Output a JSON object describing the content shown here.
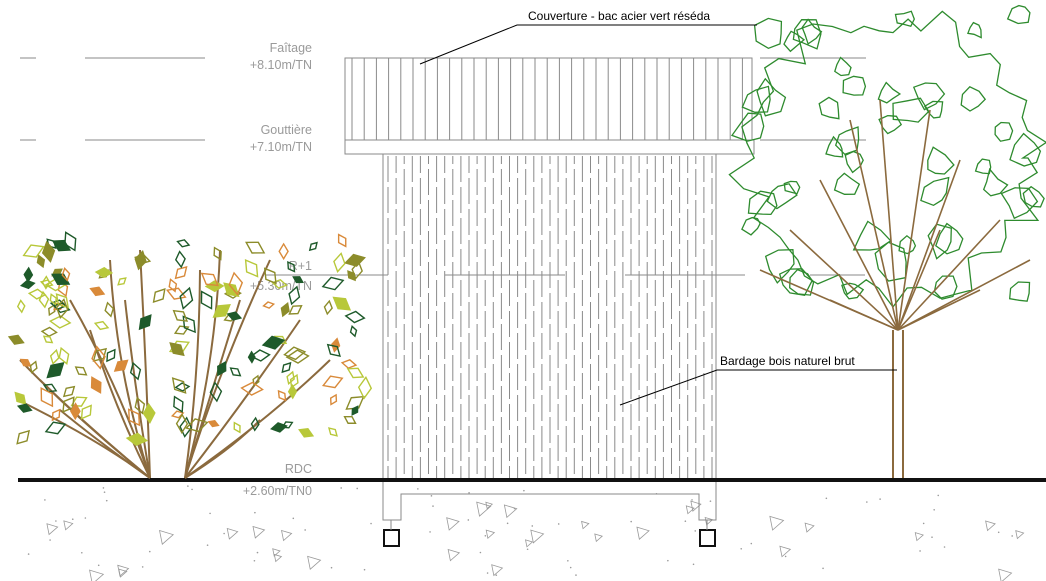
{
  "levels": {
    "faitage": {
      "name": "Faîtage",
      "value": "+8.10m/TN"
    },
    "gouttiere": {
      "name": "Gouttière",
      "value": "+7.10m/TN"
    },
    "r1": {
      "name": "R+1",
      "value": "+5.30m/TN"
    },
    "rdc": {
      "name": "RDC",
      "value": "+2.60m/TN0"
    }
  },
  "annotations": {
    "roof": "Couverture - bac acier vert réséda",
    "cladding": "Bardage bois naturel brut"
  },
  "colors": {
    "line": "#8a8a8a",
    "ground": "#111111",
    "tree_leaf": "#2e8b2e",
    "branch": "#8b6a3e",
    "shrub_olive": "#8c8c2a",
    "shrub_orange": "#d98a3a",
    "shrub_lime": "#b8c83a",
    "shrub_dark": "#1e5a2a"
  },
  "icons": [
    "shrub-symbol",
    "tree-symbol",
    "pile-foundation-symbol",
    "gravel-hatch-symbol"
  ]
}
